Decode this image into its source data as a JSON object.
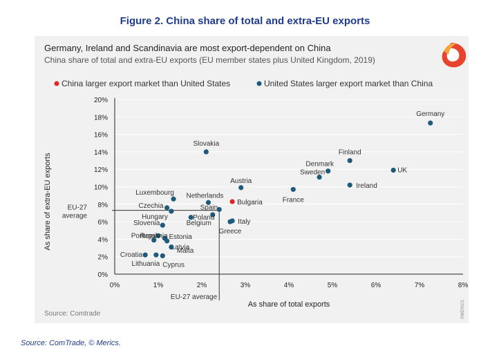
{
  "figure_title": "Figure 2. China share of total and extra-EU exports",
  "source_note": "Source: ComTrade, © Merics.",
  "panel": {
    "headline": "Germany, Ireland and Scandinavia are most export-dependent on China",
    "subtitle": "China share of total and extra-EU exports (EU member states plus United Kingdom, 2019)",
    "source": "Source: Comtrade",
    "watermark": "©MERICS"
  },
  "colors": {
    "blue": "#1f5a7a",
    "red": "#e0262a",
    "title": "#1f3c8c"
  },
  "chart_data": {
    "type": "scatter",
    "xlabel": "As share of total exports",
    "ylabel": "As share of extra-EU exports",
    "xlim": [
      0,
      8
    ],
    "ylim": [
      0,
      20
    ],
    "xticks": [
      "0%",
      "1%",
      "2%",
      "3%",
      "4%",
      "5%",
      "6%",
      "7%",
      "8%"
    ],
    "yticks": [
      "0%",
      "2%",
      "4%",
      "6%",
      "8%",
      "10%",
      "12%",
      "14%",
      "16%",
      "18%",
      "20%"
    ],
    "legend": [
      {
        "key": "red",
        "label": "China larger export market than United States"
      },
      {
        "key": "blue",
        "label": "United States larger export market than China"
      }
    ],
    "average": {
      "x": 2.4,
      "y": 7.3,
      "x_label": "EU-27 average",
      "y_label_1": "EU-27",
      "y_label_2": "average"
    },
    "points": [
      {
        "name": "Germany",
        "x": 7.25,
        "y": 17.3,
        "color": "blue"
      },
      {
        "name": "UK",
        "x": 6.4,
        "y": 11.9,
        "color": "blue"
      },
      {
        "name": "Finland",
        "x": 5.4,
        "y": 13.0,
        "color": "blue"
      },
      {
        "name": "Ireland",
        "x": 5.4,
        "y": 10.2,
        "color": "blue"
      },
      {
        "name": "Denmark",
        "x": 4.9,
        "y": 11.8,
        "color": "blue"
      },
      {
        "name": "Sweden",
        "x": 4.7,
        "y": 11.1,
        "color": "blue"
      },
      {
        "name": "France",
        "x": 4.1,
        "y": 9.7,
        "color": "blue"
      },
      {
        "name": "Slovakia",
        "x": 2.1,
        "y": 14.0,
        "color": "blue"
      },
      {
        "name": "Austria",
        "x": 2.9,
        "y": 9.9,
        "color": "blue"
      },
      {
        "name": "Bulgaria",
        "x": 2.7,
        "y": 8.3,
        "color": "red"
      },
      {
        "name": "Netherlands",
        "x": 2.15,
        "y": 8.2,
        "color": "blue"
      },
      {
        "name": "Spain",
        "x": 2.4,
        "y": 7.4,
        "color": "blue"
      },
      {
        "name": "Belgium",
        "x": 2.25,
        "y": 6.8,
        "color": "blue"
      },
      {
        "name": "Italy",
        "x": 2.7,
        "y": 6.1,
        "color": "blue"
      },
      {
        "name": "Greece",
        "x": 2.65,
        "y": 6.0,
        "color": "blue"
      },
      {
        "name": "Luxembourg",
        "x": 1.35,
        "y": 8.6,
        "color": "blue"
      },
      {
        "name": "Czechia",
        "x": 1.2,
        "y": 7.6,
        "color": "blue"
      },
      {
        "name": "Hungary",
        "x": 1.3,
        "y": 7.2,
        "color": "blue"
      },
      {
        "name": "Poland",
        "x": 1.75,
        "y": 6.5,
        "color": "blue"
      },
      {
        "name": "Slovenia",
        "x": 1.1,
        "y": 5.6,
        "color": "blue"
      },
      {
        "name": "Portugal",
        "x": 1.0,
        "y": 4.4,
        "color": "blue"
      },
      {
        "name": "Estonia",
        "x": 1.15,
        "y": 4.1,
        "color": "blue"
      },
      {
        "name": "Latvia",
        "x": 1.2,
        "y": 3.8,
        "color": "blue"
      },
      {
        "name": "Romania",
        "x": 0.9,
        "y": 3.9,
        "color": "blue"
      },
      {
        "name": "Malta",
        "x": 1.3,
        "y": 3.1,
        "color": "blue"
      },
      {
        "name": "Croatia",
        "x": 0.7,
        "y": 2.2,
        "color": "blue"
      },
      {
        "name": "Lithuania",
        "x": 0.95,
        "y": 2.2,
        "color": "blue"
      },
      {
        "name": "Cyprus",
        "x": 1.1,
        "y": 2.1,
        "color": "blue"
      }
    ]
  }
}
